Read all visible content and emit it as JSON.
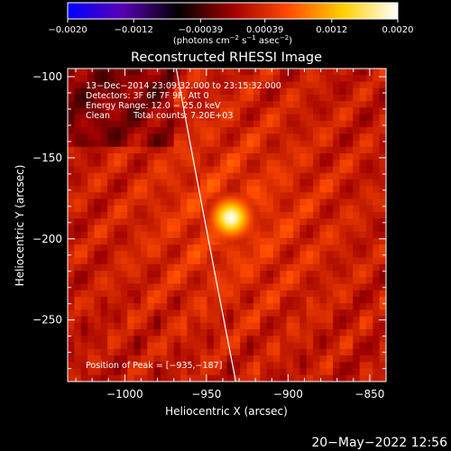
{
  "chart_data": {
    "type": "heatmap",
    "title": "Reconstructed RHESSI Image",
    "xlabel": "Heliocentric X (arcsec)",
    "ylabel": "Heliocentric Y (arcsec)",
    "xlim": [
      -1035,
      -840
    ],
    "ylim": [
      -288,
      -95
    ],
    "x_ticks": [
      -1000,
      -950,
      -900,
      -850
    ],
    "x_tick_labels": [
      "−1000",
      "−950",
      "−900",
      "−850"
    ],
    "y_ticks": [
      -250,
      -200,
      -150,
      -100
    ],
    "y_tick_labels": [
      "−250",
      "−200",
      "−150",
      "−100"
    ],
    "colorbar": {
      "range": [
        -0.002,
        0.002
      ],
      "ticks": [
        -0.002,
        -0.0012,
        -0.00039,
        0.00039,
        0.0012,
        0.002
      ],
      "tick_labels": [
        "−0.0020",
        "−0.0012",
        "−0.00039",
        "0.00039",
        "0.0012",
        "0.0020"
      ],
      "units_prefix": "(photons cm",
      "units_exp1": "−2",
      "units_mid1": " s",
      "units_exp2": "−1",
      "units_mid2": " asec",
      "units_exp3": "−2",
      "units_suffix": ")",
      "stops": [
        "#0000ff",
        "#5a00b4",
        "#000000",
        "#a00000",
        "#ff4a00",
        "#ffcf00",
        "#ffffff"
      ]
    },
    "info": {
      "time_range": "13−Dec−2014 23:09:32.000 to 23:15:32.000",
      "detectors": "Detectors: 3F 6F 7F 9F, Att 0",
      "energy_range": "Energy Range: 12.0 − 25.0 keV",
      "method": "Clean",
      "total_counts": "Total counts: 7.20E+03"
    },
    "peak": {
      "label": "Position of Peak = [−935,−187]",
      "x": -935,
      "y": -187
    },
    "limb_points": [
      [
        -968.5,
        -95
      ],
      [
        -951,
        -190
      ],
      [
        -932,
        -288
      ]
    ]
  },
  "footer": {
    "timestamp": "20−May−2022 12:56"
  }
}
